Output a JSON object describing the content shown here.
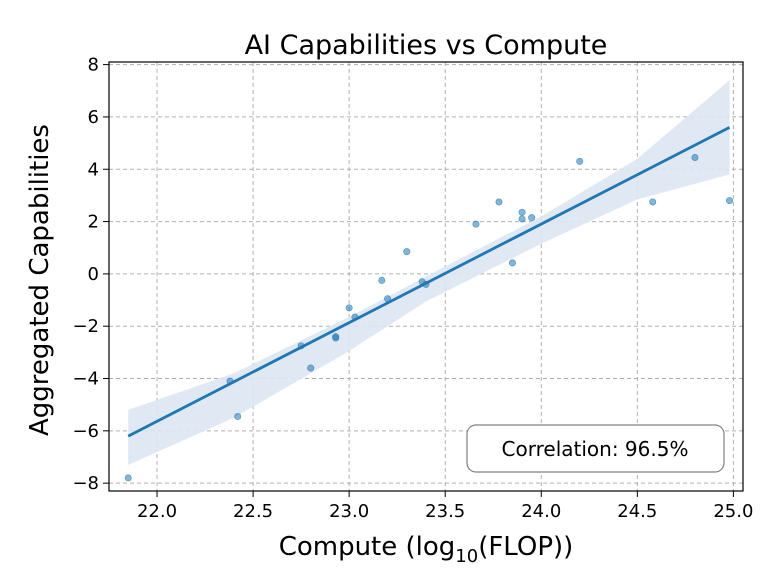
{
  "chart_data": {
    "type": "scatter",
    "title": "AI Capabilities vs Compute",
    "xlabel_prefix": "Compute (log",
    "xlabel_sub": "10",
    "xlabel_suffix": "(FLOP))",
    "ylabel": "Aggregated Capabilities",
    "xlim": [
      21.75,
      25.05
    ],
    "ylim": [
      -8.3,
      8.1
    ],
    "xticks": [
      22.0,
      22.5,
      23.0,
      23.5,
      24.0,
      24.5,
      25.0
    ],
    "xtick_labels": [
      "22.0",
      "22.5",
      "23.0",
      "23.5",
      "24.0",
      "24.5",
      "25.0"
    ],
    "yticks": [
      -8,
      -6,
      -4,
      -2,
      0,
      2,
      4,
      6,
      8
    ],
    "ytick_labels": [
      "−8",
      "−6",
      "−4",
      "−2",
      "0",
      "2",
      "4",
      "6",
      "8"
    ],
    "grid": true,
    "points": [
      {
        "x": 21.85,
        "y": -7.8
      },
      {
        "x": 22.38,
        "y": -4.1
      },
      {
        "x": 22.42,
        "y": -5.45
      },
      {
        "x": 22.75,
        "y": -2.75
      },
      {
        "x": 22.8,
        "y": -3.6
      },
      {
        "x": 22.93,
        "y": -2.45
      },
      {
        "x": 22.93,
        "y": -2.4
      },
      {
        "x": 23.0,
        "y": -1.3
      },
      {
        "x": 23.03,
        "y": -1.65
      },
      {
        "x": 23.17,
        "y": -0.25
      },
      {
        "x": 23.2,
        "y": -0.95
      },
      {
        "x": 23.3,
        "y": 0.85
      },
      {
        "x": 23.38,
        "y": -0.3
      },
      {
        "x": 23.4,
        "y": -0.4
      },
      {
        "x": 23.66,
        "y": 1.9
      },
      {
        "x": 23.78,
        "y": 2.75
      },
      {
        "x": 23.85,
        "y": 0.42
      },
      {
        "x": 23.9,
        "y": 2.1
      },
      {
        "x": 23.9,
        "y": 2.35
      },
      {
        "x": 23.95,
        "y": 2.15
      },
      {
        "x": 24.2,
        "y": 4.3
      },
      {
        "x": 24.58,
        "y": 2.75
      },
      {
        "x": 24.8,
        "y": 4.45
      },
      {
        "x": 24.98,
        "y": 2.8
      }
    ],
    "regression_line": {
      "x": [
        21.85,
        24.98
      ],
      "y": [
        -6.2,
        5.6
      ]
    },
    "confidence_band": {
      "x": [
        21.85,
        22.4,
        23.0,
        23.4,
        24.0,
        24.5,
        24.98
      ],
      "upper": [
        -5.2,
        -3.8,
        -1.65,
        -0.1,
        2.2,
        4.4,
        7.4
      ],
      "lower": [
        -7.3,
        -5.5,
        -2.95,
        -1.05,
        1.15,
        2.85,
        3.8
      ]
    },
    "annotation": "Correlation: 96.5%",
    "colors": {
      "points": "#1f77b4",
      "line": "#1f77b4",
      "band": "#dce6f2",
      "grid": "#b0b0b0"
    }
  }
}
